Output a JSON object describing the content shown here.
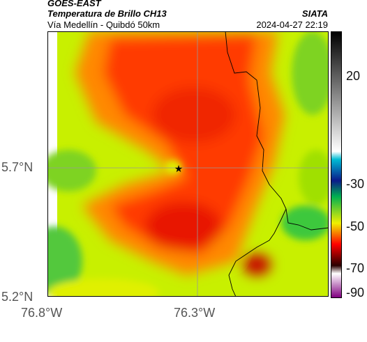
{
  "header": {
    "satellite": "GOES-EAST",
    "product": "Temperatura de Brillo CH13",
    "route": "Vía Medellín - Quibdó 50km",
    "organization": "SIATA",
    "timestamp": "2024-04-27 22:19"
  },
  "axes": {
    "y_ticks": [
      "5.7°N",
      "5.2°N"
    ],
    "x_ticks": [
      "76.8°W",
      "76.3°W"
    ]
  },
  "colorbar": {
    "ticks": [
      "20",
      "-30",
      "-50",
      "-70",
      "-90"
    ],
    "stops": [
      "#000000",
      "#ffffff",
      "#00bcd4",
      "#0b1a8a",
      "#00b050",
      "#f0f000",
      "#ff0000",
      "#2a0000",
      "#ffffff",
      "#800080"
    ]
  },
  "marker": {
    "symbol": "★"
  },
  "colors": {
    "warm_yellow": "#c8f000",
    "orange": "#ff8800",
    "red": "#ff3a00",
    "green": "#3cc83c",
    "deep_red": "#c80000"
  }
}
